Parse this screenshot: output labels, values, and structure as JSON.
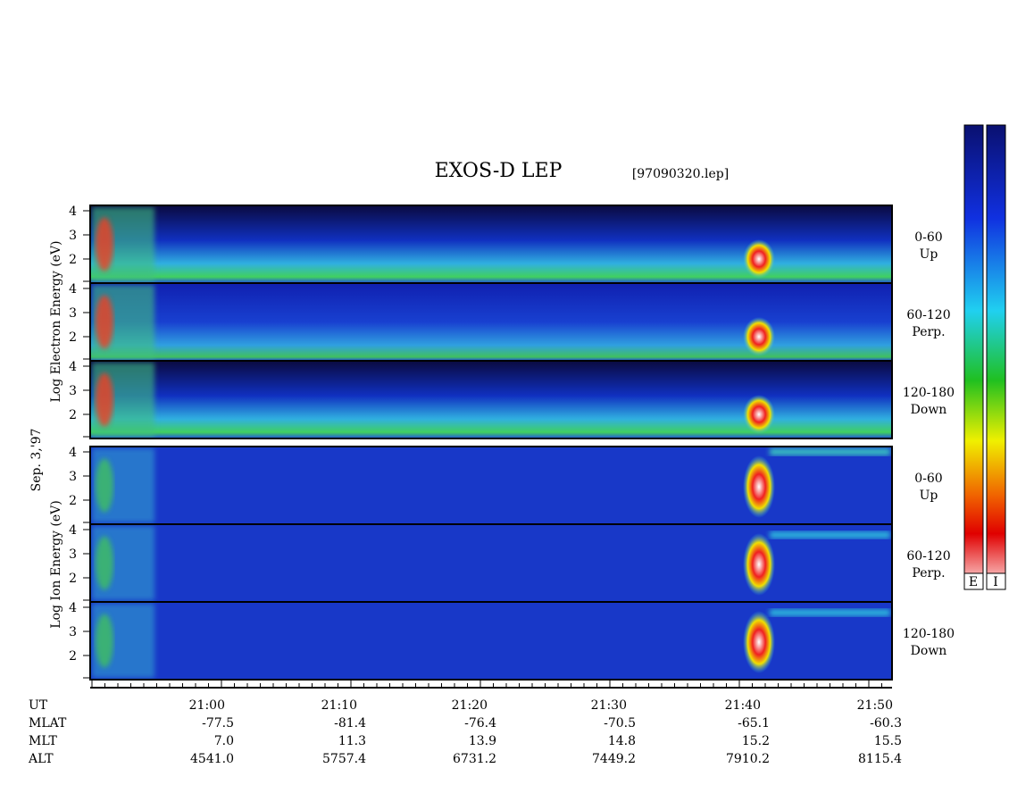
{
  "header": {
    "title": "EXOS-D LEP",
    "file": "[97090320.lep]"
  },
  "left_labels": {
    "electron": "Log  Electron  Energy (eV)",
    "date": "Sep. 3,'97",
    "ion": "Log  Ion  Energy (eV)"
  },
  "energy_ticks": [
    "4",
    "3",
    "2"
  ],
  "panels": [
    {
      "range": "0-60",
      "dir": "Up"
    },
    {
      "range": "60-120",
      "dir": "Perp."
    },
    {
      "range": "120-180",
      "dir": "Down"
    },
    {
      "range": "0-60",
      "dir": "Up"
    },
    {
      "range": "60-120",
      "dir": "Perp."
    },
    {
      "range": "120-180",
      "dir": "Down"
    }
  ],
  "colorbar_labels": [
    "E",
    "I"
  ],
  "ephemeris": {
    "row_names": [
      "UT",
      "MLAT",
      "MLT",
      "ALT"
    ],
    "columns": [
      [
        "21:00",
        "-77.5",
        "7.0",
        "4541.0"
      ],
      [
        "21:10",
        "-81.4",
        "11.3",
        "5757.4"
      ],
      [
        "21:20",
        "-76.4",
        "13.9",
        "6731.2"
      ],
      [
        "21:30",
        "-70.5",
        "14.8",
        "7449.2"
      ],
      [
        "21:40",
        "-65.1",
        "15.2",
        "7910.2"
      ],
      [
        "21:50",
        "-60.3",
        "15.5",
        "8115.4"
      ]
    ]
  }
}
